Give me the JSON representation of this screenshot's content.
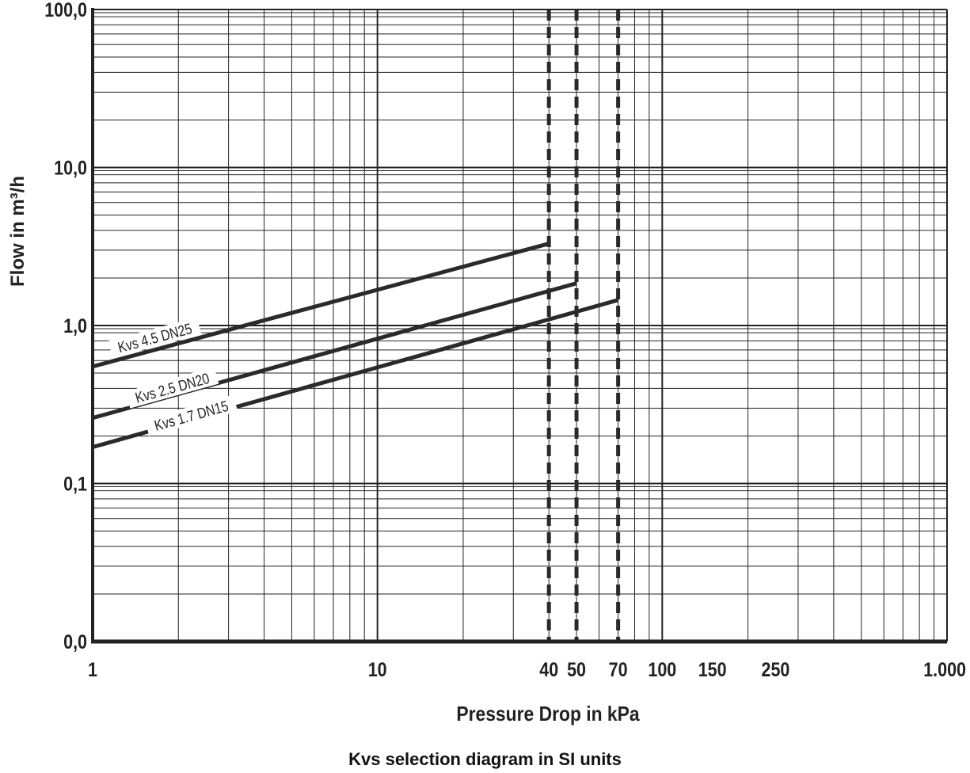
{
  "caption": "Kvs selection diagram in SI units",
  "chart_data": {
    "type": "line",
    "title": "",
    "xlabel": "Pressure Drop in kPa",
    "ylabel": "Flow in m³/h",
    "x_scale": "log",
    "y_scale": "log",
    "xlim": [
      1,
      1000
    ],
    "ylim": [
      0.01,
      100
    ],
    "grid": true,
    "x_ticks": [
      {
        "value": 1,
        "label": "1"
      },
      {
        "value": 10,
        "label": "10"
      },
      {
        "value": 40,
        "label": "40"
      },
      {
        "value": 50,
        "label": "50"
      },
      {
        "value": 70,
        "label": "70"
      },
      {
        "value": 100,
        "label": "100"
      },
      {
        "value": 150,
        "label": "150"
      },
      {
        "value": 250,
        "label": "250"
      },
      {
        "value": 1000,
        "label": "1.000"
      }
    ],
    "y_ticks": [
      {
        "value": 0.01,
        "label": "0,0"
      },
      {
        "value": 0.1,
        "label": "0,1"
      },
      {
        "value": 1,
        "label": "1,0"
      },
      {
        "value": 10,
        "label": "10,0"
      },
      {
        "value": 100,
        "label": "100,0"
      }
    ],
    "series": [
      {
        "name": "Kvs 4.5 DN25",
        "x": [
          1,
          40
        ],
        "y": [
          0.55,
          3.3
        ]
      },
      {
        "name": "Kvs 2.5 DN20",
        "x": [
          1,
          50
        ],
        "y": [
          0.26,
          1.85
        ]
      },
      {
        "name": "Kvs 1.7 DN15",
        "x": [
          1,
          70
        ],
        "y": [
          0.17,
          1.45
        ]
      }
    ],
    "vertical_limits": [
      {
        "x": 40,
        "style": "dashed"
      },
      {
        "x": 50,
        "style": "dashed"
      },
      {
        "x": 70,
        "style": "dashed"
      }
    ],
    "colors": {
      "line": "#2a2a2a",
      "grid": "#222222"
    }
  }
}
